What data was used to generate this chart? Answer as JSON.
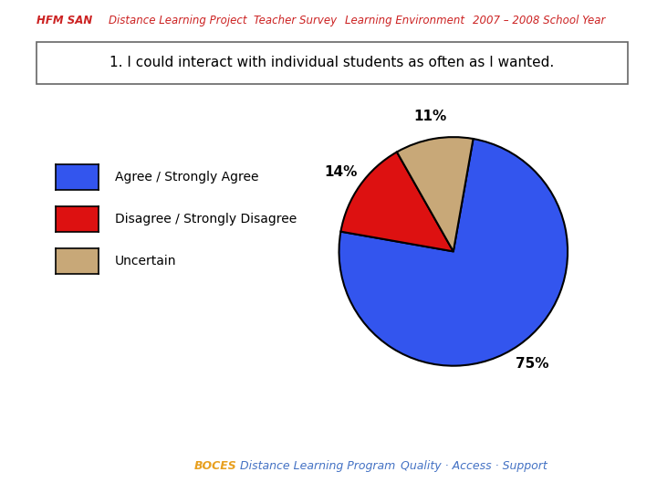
{
  "title_line": "1. I could interact with individual students as often as I wanted.",
  "slices": [
    75,
    14,
    11
  ],
  "slice_labels": [
    "75%",
    "14%",
    "11%"
  ],
  "slice_colors": [
    "#3355ee",
    "#dd1111",
    "#c8a878"
  ],
  "legend_labels": [
    "Agree / Strongly Agree",
    "Disagree / Strongly Disagree",
    "Uncertain"
  ],
  "legend_colors": [
    "#3355ee",
    "#dd1111",
    "#c8a878"
  ],
  "background_color": "#ffffff",
  "header_color": "#cc2222",
  "footer_boces_color": "#e8a020",
  "footer_dlp_color": "#4472c4"
}
